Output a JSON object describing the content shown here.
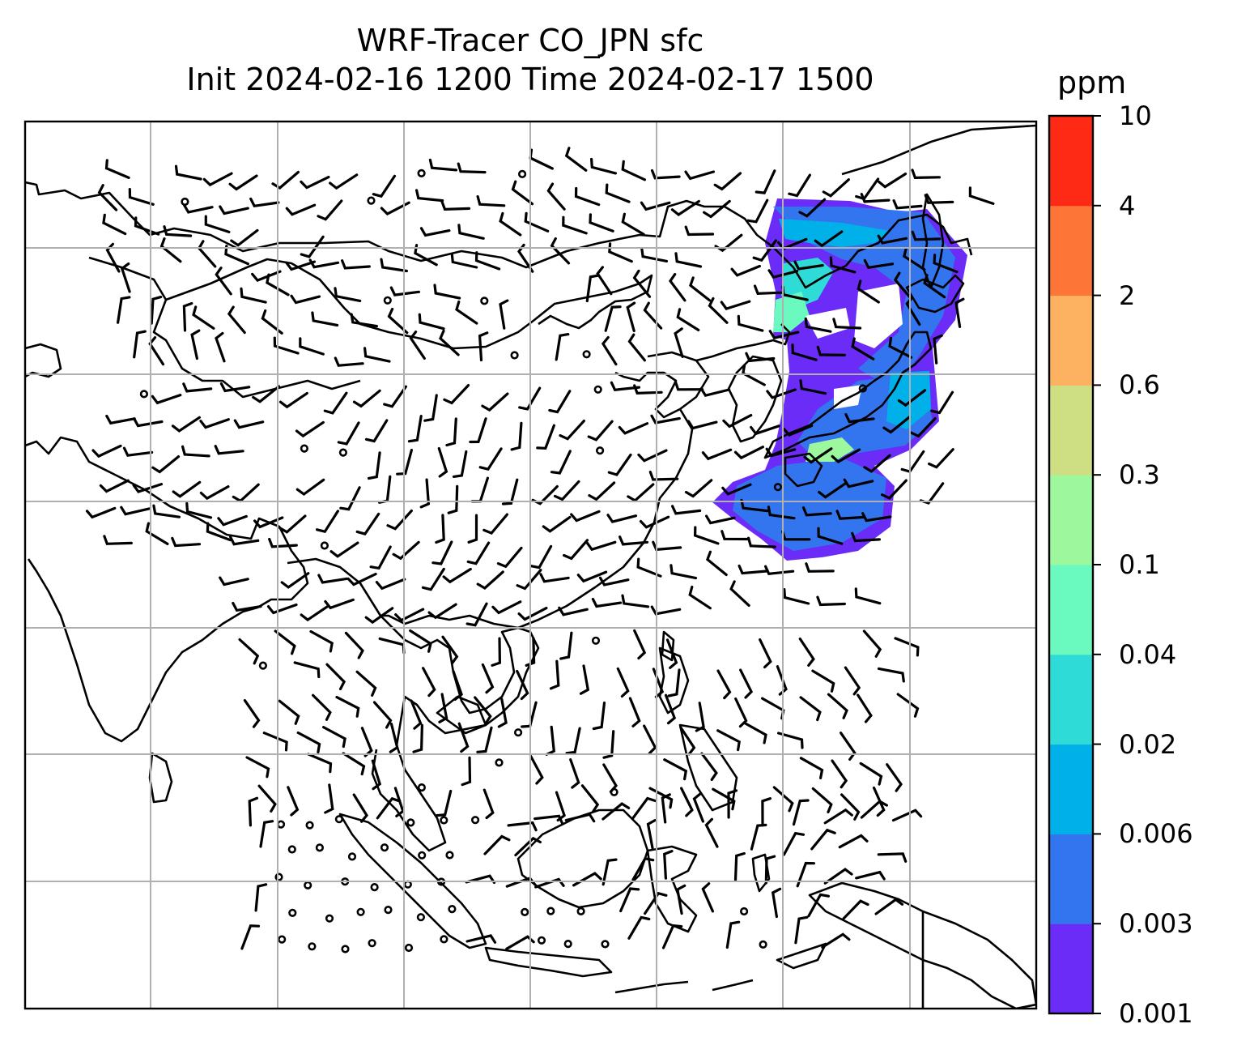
{
  "title": {
    "line1": "WRF-Tracer CO_JPN sfc",
    "line2": "Init 2024-02-16 1200 Time 2024-02-17 1500"
  },
  "colorbar": {
    "unit": "ppm",
    "levels": [
      "0.001",
      "0.003",
      "0.006",
      "0.02",
      "0.04",
      "0.1",
      "0.3",
      "0.6",
      "2",
      "4",
      "10"
    ],
    "colors": [
      "#6a2cf6",
      "#3375ef",
      "#00b1e9",
      "#2fdbd6",
      "#6af9bf",
      "#9cf79d",
      "#cedf83",
      "#fcb261",
      "#fe7538",
      "#fe2a15"
    ]
  },
  "map": {
    "coastline_color": "#000000",
    "gridline_color": "#b0b0b0",
    "frame_color": "#000000",
    "plume_colors": {
      "base": "#6a2cf6",
      "mid": "#3375ef",
      "cyan": "#00b1e9",
      "teal": "#2fdbd6",
      "mint": "#6af9bf",
      "green": "#9cf79d"
    }
  }
}
